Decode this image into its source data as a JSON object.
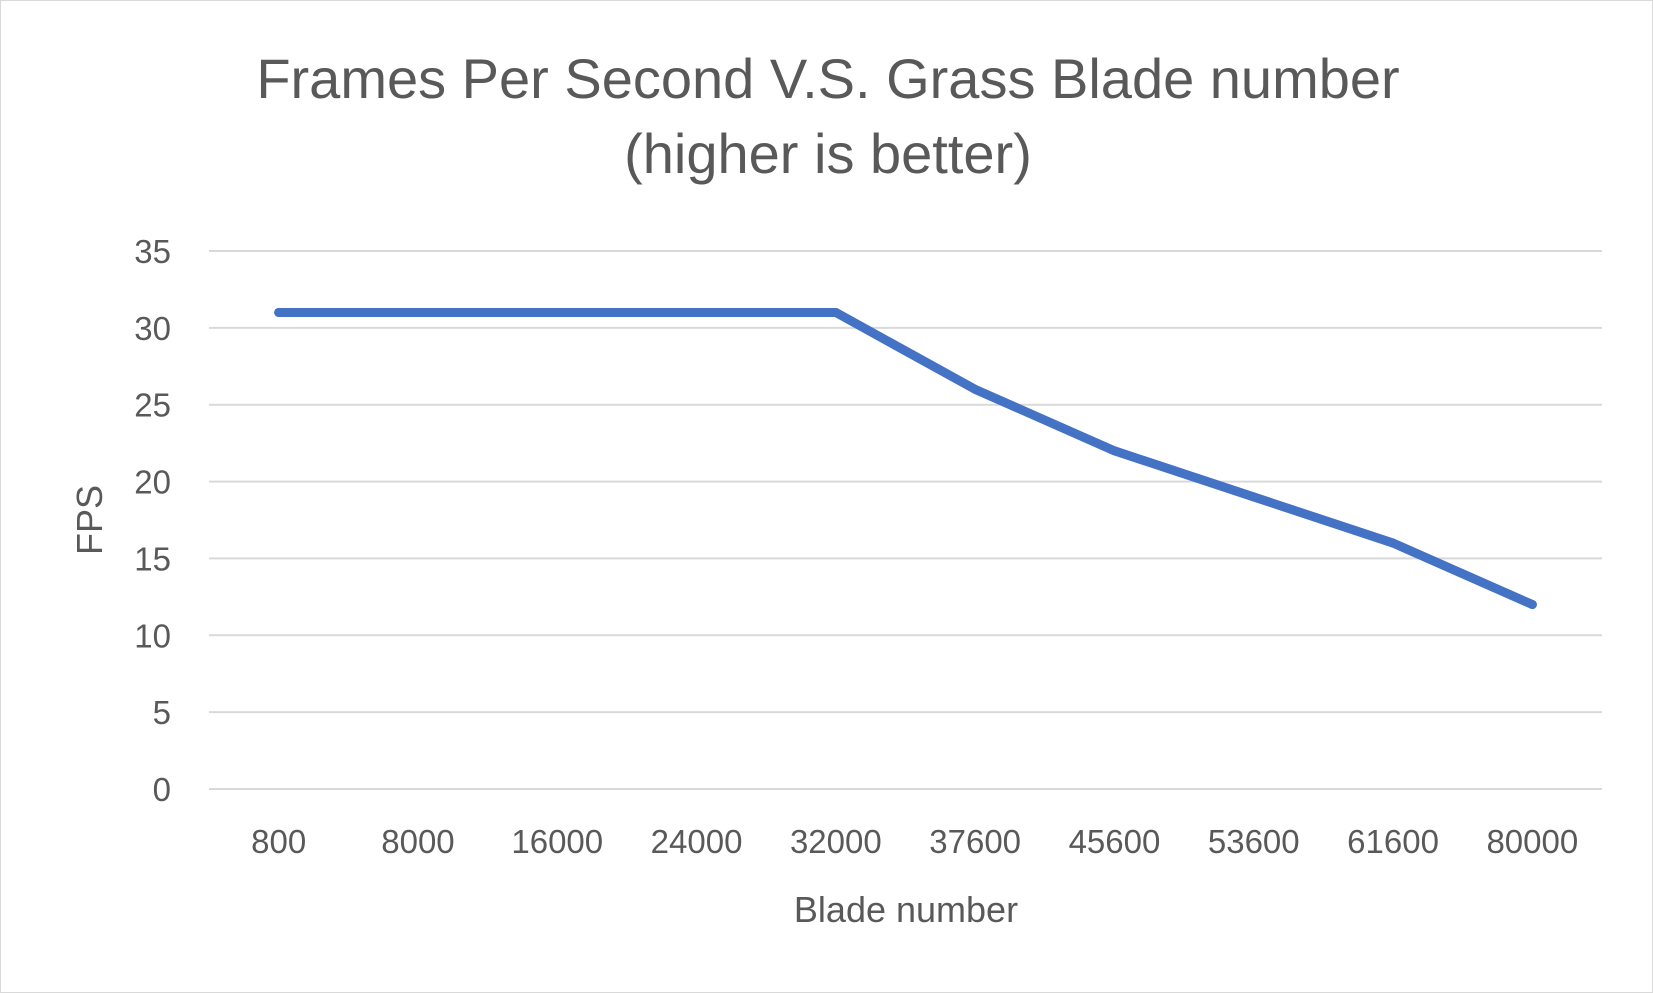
{
  "chart_data": {
    "type": "line",
    "title": "Frames Per Second V.S. Grass Blade number",
    "subtitle": "(higher is better)",
    "xlabel": "Blade number",
    "ylabel": "FPS",
    "categories": [
      "800",
      "8000",
      "16000",
      "24000",
      "32000",
      "37600",
      "45600",
      "53600",
      "61600",
      "80000"
    ],
    "series": [
      {
        "values": [
          31,
          31,
          31,
          31,
          31,
          26,
          22,
          19,
          16,
          12
        ],
        "color": "#4472c4"
      }
    ],
    "ylim": [
      0,
      35
    ],
    "yticks": [
      "0",
      "5",
      "10",
      "15",
      "20",
      "25",
      "30",
      "35"
    ],
    "grid": true,
    "legend": "none"
  }
}
